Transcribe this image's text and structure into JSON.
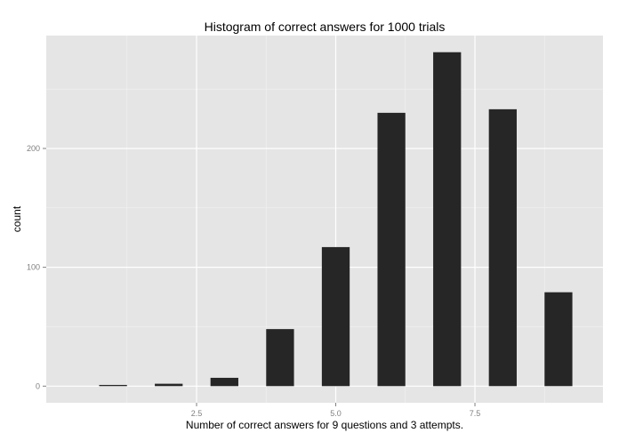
{
  "chart_data": {
    "type": "bar",
    "title": "Histogram of correct answers for 1000 trials",
    "xlabel": "Number of correct answers for 9 questions and 3 attempts.",
    "ylabel": "count",
    "x": [
      1.5,
      2.5,
      3.5,
      4.5,
      5.5,
      6.5,
      7.5,
      8.5,
      9.5
    ],
    "values": [
      1,
      2,
      7,
      48,
      117,
      230,
      281,
      233,
      79
    ],
    "bar_width": 0.5,
    "xlim": [
      0.3,
      10.3
    ],
    "ylim": [
      -14,
      295
    ],
    "x_ticks": [
      {
        "value": 3.0,
        "label": "2.5"
      },
      {
        "value": 5.5,
        "label": "5.0"
      },
      {
        "value": 8.0,
        "label": "7.5"
      }
    ],
    "y_ticks": [
      {
        "value": 0,
        "label": "0"
      },
      {
        "value": 100,
        "label": "100"
      },
      {
        "value": 200,
        "label": "200"
      }
    ],
    "grid": true,
    "colors": {
      "panel": "#e5e5e5",
      "grid_major": "#ffffff",
      "grid_minor": "#f2f2f2",
      "bar": "#262626"
    }
  }
}
